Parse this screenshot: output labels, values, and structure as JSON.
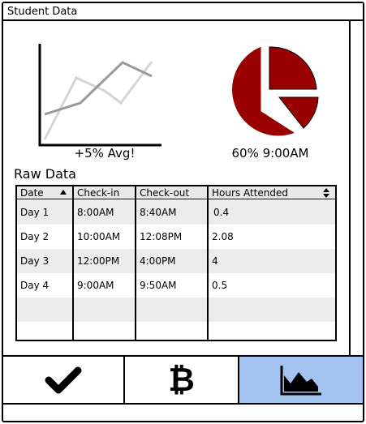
{
  "window": {
    "title": "Student Data"
  },
  "line_chart": {
    "caption": "+5% Avg!",
    "icon": "line-chart-icon"
  },
  "pie_chart": {
    "caption": "60% 9:00AM",
    "color": "#990000",
    "icon": "pie-chart-icon"
  },
  "raw_data": {
    "title": "Raw Data",
    "columns": [
      "Date",
      "Check-in",
      "Check-out",
      "Hours Attended"
    ],
    "rows": [
      [
        "Day 1",
        "8:00AM",
        "8:40AM",
        "0.4"
      ],
      [
        "Day 2",
        "10:00AM",
        "12:08PM",
        "2.08"
      ],
      [
        "Day 3",
        "12:00PM",
        "4:00PM",
        "4"
      ],
      [
        "Day 4",
        "9:00AM",
        "9:50AM",
        "0.5"
      ]
    ]
  },
  "tabs": [
    {
      "icon": "checkmark-icon"
    },
    {
      "icon": "bitcoin-icon",
      "glyph": "₿"
    },
    {
      "icon": "area-chart-icon",
      "selected": true,
      "selected_color": "#a3c4f1"
    }
  ]
}
